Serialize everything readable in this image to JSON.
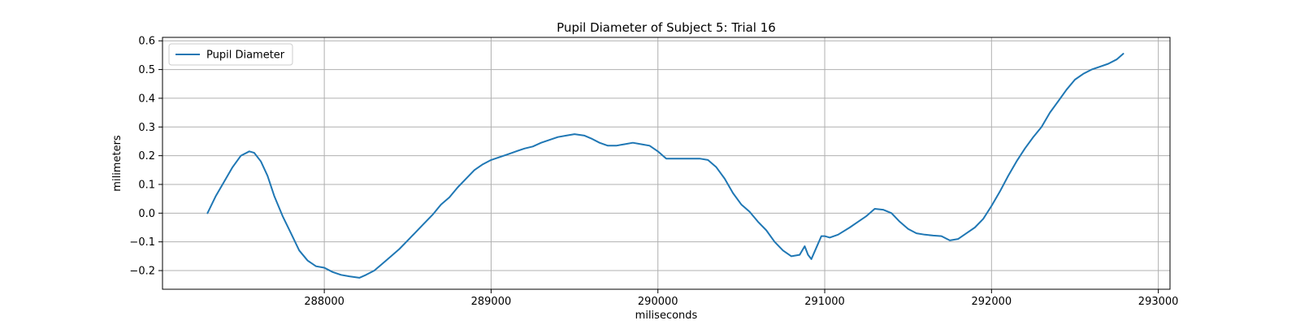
{
  "chart_data": {
    "type": "line",
    "title": "Pupil Diameter of Subject 5: Trial 16",
    "xlabel": "miliseconds",
    "ylabel": "milimeters",
    "xlim": [
      287030,
      293070
    ],
    "ylim": [
      -0.265,
      0.612
    ],
    "x_ticks": [
      288000,
      289000,
      290000,
      291000,
      292000,
      293000
    ],
    "y_ticks": [
      -0.2,
      -0.1,
      0.0,
      0.1,
      0.2,
      0.3,
      0.4,
      0.5,
      0.6
    ],
    "x_tick_labels": [
      "288000",
      "289000",
      "290000",
      "291000",
      "292000",
      "293000"
    ],
    "y_tick_labels": [
      "−0.2",
      "−0.1",
      "0.0",
      "0.1",
      "0.2",
      "0.3",
      "0.4",
      "0.5",
      "0.6"
    ],
    "grid": true,
    "legend": {
      "position": "top-left",
      "entries": [
        "Pupil Diameter"
      ]
    },
    "colors": {
      "series": "#1f77b4",
      "grid": "#b0b0b0",
      "axes": "#000000"
    },
    "series": [
      {
        "name": "Pupil Diameter",
        "x": [
          287300,
          287350,
          287400,
          287450,
          287500,
          287550,
          287580,
          287620,
          287660,
          287700,
          287750,
          287800,
          287850,
          287900,
          287950,
          288000,
          288050,
          288100,
          288150,
          288210,
          288250,
          288300,
          288350,
          288400,
          288450,
          288500,
          288550,
          288600,
          288650,
          288700,
          288750,
          288800,
          288850,
          288900,
          288950,
          289000,
          289050,
          289100,
          289150,
          289200,
          289250,
          289300,
          289350,
          289400,
          289450,
          289500,
          289560,
          289600,
          289650,
          289700,
          289750,
          289800,
          289850,
          289900,
          289950,
          290000,
          290050,
          290100,
          290150,
          290200,
          290250,
          290300,
          290350,
          290400,
          290450,
          290500,
          290550,
          290600,
          290650,
          290700,
          290750,
          290800,
          290850,
          290880,
          290900,
          290920,
          290950,
          290980,
          291000,
          291030,
          291080,
          291150,
          291200,
          291250,
          291300,
          291350,
          291400,
          291450,
          291500,
          291550,
          291600,
          291650,
          291700,
          291750,
          291800,
          291850,
          291900,
          291950,
          292000,
          292050,
          292100,
          292150,
          292200,
          292250,
          292300,
          292350,
          292400,
          292450,
          292500,
          292550,
          292600,
          292650,
          292700,
          292750,
          292790
        ],
        "values": [
          0.0,
          0.06,
          0.11,
          0.16,
          0.2,
          0.215,
          0.21,
          0.18,
          0.13,
          0.06,
          -0.01,
          -0.07,
          -0.13,
          -0.165,
          -0.185,
          -0.19,
          -0.205,
          -0.215,
          -0.22,
          -0.225,
          -0.215,
          -0.2,
          -0.175,
          -0.15,
          -0.125,
          -0.095,
          -0.065,
          -0.035,
          -0.005,
          0.03,
          0.055,
          0.09,
          0.12,
          0.15,
          0.17,
          0.185,
          0.195,
          0.205,
          0.215,
          0.225,
          0.232,
          0.245,
          0.255,
          0.265,
          0.27,
          0.275,
          0.27,
          0.26,
          0.245,
          0.235,
          0.235,
          0.24,
          0.245,
          0.24,
          0.235,
          0.215,
          0.19,
          0.19,
          0.19,
          0.19,
          0.19,
          0.185,
          0.16,
          0.12,
          0.07,
          0.03,
          0.005,
          -0.03,
          -0.06,
          -0.1,
          -0.13,
          -0.15,
          -0.145,
          -0.115,
          -0.145,
          -0.16,
          -0.12,
          -0.08,
          -0.08,
          -0.085,
          -0.075,
          -0.05,
          -0.03,
          -0.01,
          0.015,
          0.012,
          0.0,
          -0.03,
          -0.055,
          -0.07,
          -0.075,
          -0.078,
          -0.08,
          -0.095,
          -0.09,
          -0.07,
          -0.05,
          -0.02,
          0.025,
          0.075,
          0.13,
          0.18,
          0.225,
          0.265,
          0.3,
          0.35,
          0.39,
          0.43,
          0.465,
          0.485,
          0.5,
          0.51,
          0.52,
          0.535,
          0.555
        ]
      }
    ]
  }
}
